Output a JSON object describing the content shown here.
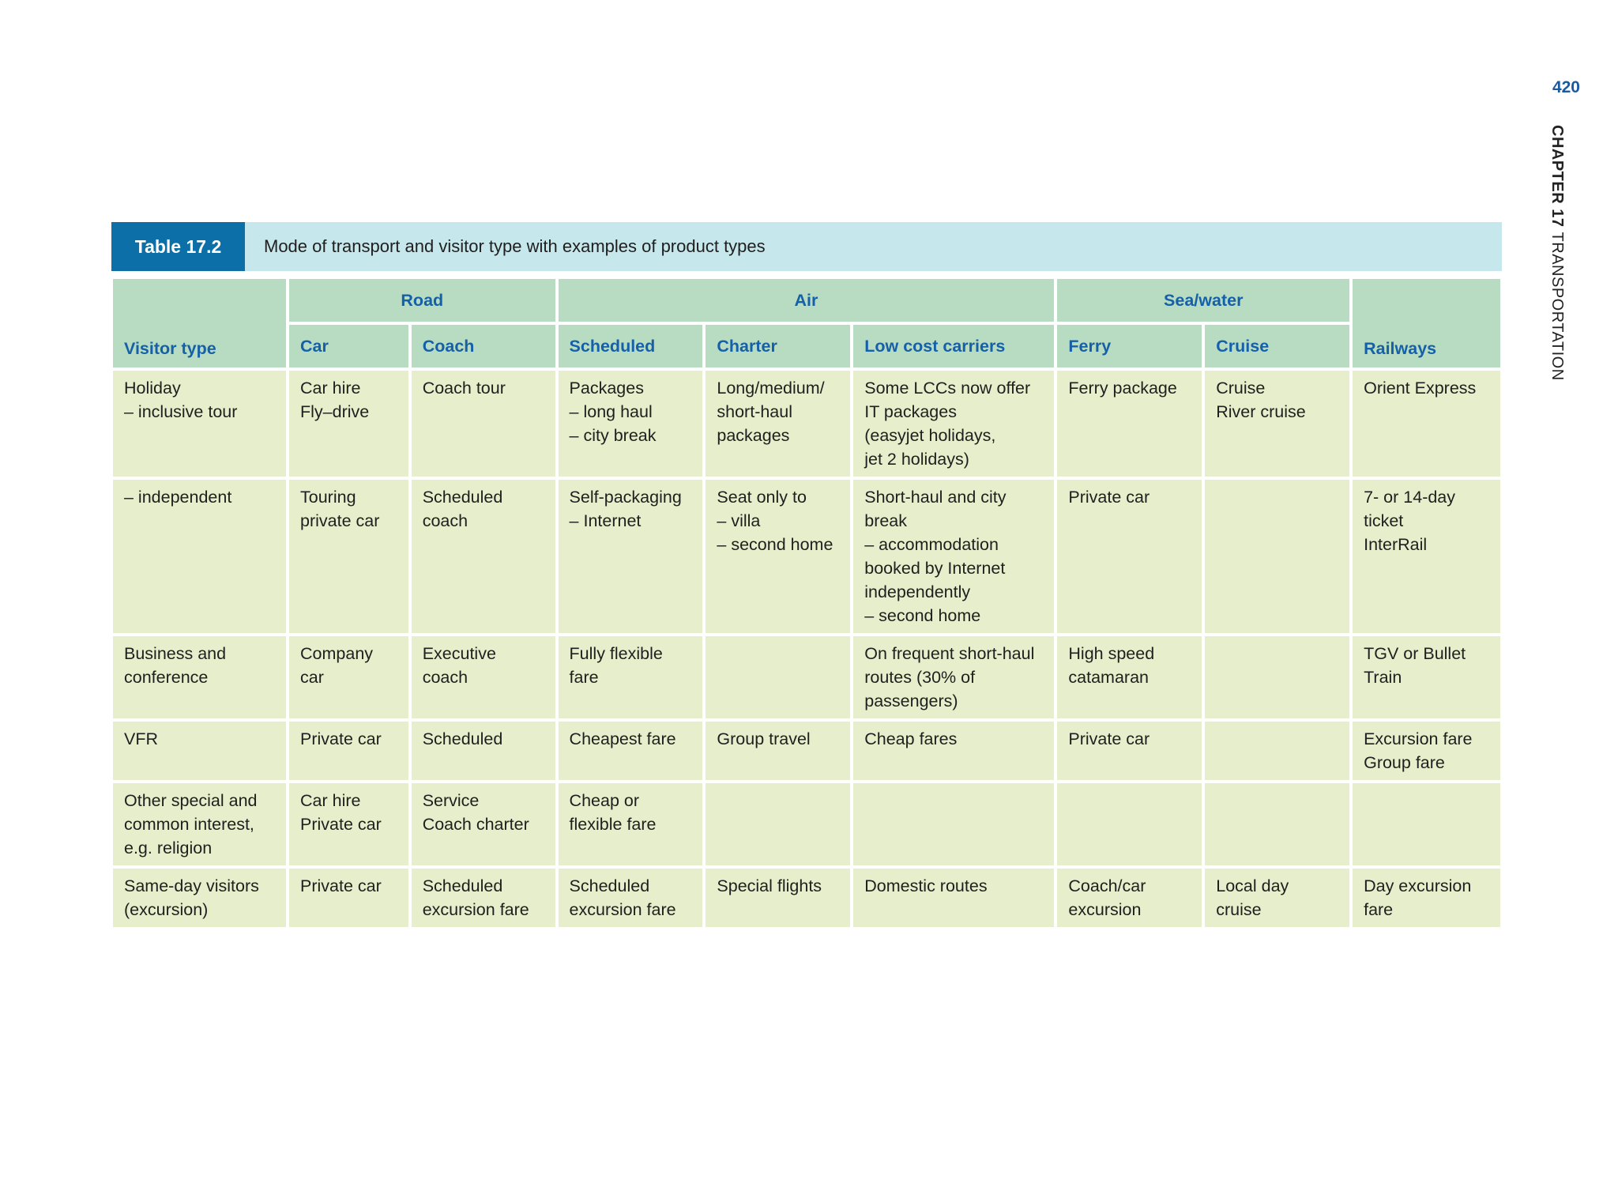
{
  "page": {
    "page_number": "420",
    "running_head_chapter": "CHAPTER 17",
    "running_head_title": "TRANSPORTATION"
  },
  "table": {
    "label": "Table 17.2",
    "caption": "Mode of transport and visitor type with examples of product types",
    "header": {
      "visitor_type": "Visitor type",
      "groups": {
        "road": "Road",
        "air": "Air",
        "sea_water": "Sea/water"
      },
      "columns": {
        "car": "Car",
        "coach": "Coach",
        "scheduled": "Scheduled",
        "charter": "Charter",
        "low_cost_carriers": "Low cost carriers",
        "ferry": "Ferry",
        "cruise": "Cruise",
        "railways": "Railways"
      }
    },
    "rows": [
      {
        "visitor": [
          "Holiday",
          "– inclusive tour"
        ],
        "car": [
          "Car hire",
          "Fly–drive"
        ],
        "coach": [
          "Coach tour"
        ],
        "scheduled": [
          "Packages",
          "– long haul",
          "– city break"
        ],
        "charter": [
          "Long/medium/",
          "short-haul",
          "packages"
        ],
        "lcc": [
          "Some LCCs now offer",
          "IT packages",
          "(easyjet holidays,",
          "jet 2 holidays)"
        ],
        "ferry": [
          "Ferry package"
        ],
        "cruise": [
          "Cruise",
          "River cruise"
        ],
        "railways": [
          "Orient Express"
        ]
      },
      {
        "visitor": [
          "– independent"
        ],
        "car": [
          "Touring",
          "private car"
        ],
        "coach": [
          "Scheduled",
          "coach"
        ],
        "scheduled": [
          "Self-packaging",
          "– Internet"
        ],
        "charter": [
          "Seat only to",
          "– villa",
          "– second home"
        ],
        "lcc": [
          "Short-haul and city",
          "break",
          "– accommodation",
          "booked by Internet",
          "independently",
          "– second home"
        ],
        "ferry": [
          "Private car"
        ],
        "cruise": [],
        "railways": [
          "7- or 14-day",
          "ticket",
          "InterRail"
        ]
      },
      {
        "visitor": [
          "Business and",
          "conference"
        ],
        "car": [
          "Company",
          "car"
        ],
        "coach": [
          "Executive",
          "coach"
        ],
        "scheduled": [
          "Fully flexible",
          "fare"
        ],
        "charter": [],
        "lcc": [
          "On frequent short-haul",
          "routes (30% of",
          "passengers)"
        ],
        "ferry": [
          "High speed",
          "catamaran"
        ],
        "cruise": [],
        "railways": [
          "TGV or Bullet",
          "Train"
        ]
      },
      {
        "visitor": [
          "VFR"
        ],
        "car": [
          "Private car"
        ],
        "coach": [
          "Scheduled"
        ],
        "scheduled": [
          "Cheapest fare"
        ],
        "charter": [
          "Group travel"
        ],
        "lcc": [
          "Cheap fares"
        ],
        "ferry": [
          "Private car"
        ],
        "cruise": [],
        "railways": [
          "Excursion fare",
          "Group fare"
        ]
      },
      {
        "visitor": [
          "Other special and",
          "common interest,",
          "e.g. religion"
        ],
        "car": [
          "Car hire",
          "Private car"
        ],
        "coach": [
          "Service",
          "Coach charter"
        ],
        "scheduled": [
          "Cheap or",
          "flexible fare"
        ],
        "charter": [],
        "lcc": [],
        "ferry": [],
        "cruise": [],
        "railways": []
      },
      {
        "visitor": [
          "Same-day visitors",
          "(excursion)"
        ],
        "car": [
          "Private car"
        ],
        "coach": [
          "Scheduled",
          "excursion fare"
        ],
        "scheduled": [
          "Scheduled",
          "excursion fare"
        ],
        "charter": [
          "Special flights"
        ],
        "lcc": [
          "Domestic routes"
        ],
        "ferry": [
          "Coach/car",
          "excursion"
        ],
        "cruise": [
          "Local day",
          "cruise"
        ],
        "railways": [
          "Day excursion",
          "fare"
        ]
      }
    ]
  }
}
